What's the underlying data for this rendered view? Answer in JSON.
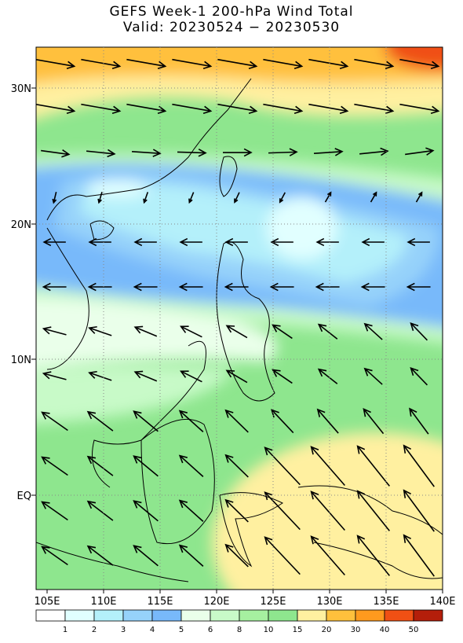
{
  "title": "GEFS Week-1 200-hPa Wind Total",
  "subtitle": "Valid: 20230524 − 20230530",
  "map": {
    "lat_labels": [
      "30N",
      "20N",
      "10N",
      "EQ"
    ],
    "lon_labels": [
      "105E",
      "110E",
      "115E",
      "120E",
      "125E",
      "130E",
      "135E",
      "140E"
    ]
  },
  "colorbar": {
    "levels": [
      1,
      2,
      3,
      4,
      5,
      6,
      8,
      10,
      15,
      20,
      30,
      40,
      50
    ],
    "colors": [
      "#ffffff",
      "#e1ffff",
      "#b4f0fa",
      "#96d2fa",
      "#78b9fa",
      "#eaffea",
      "#c8fac8",
      "#a6f0a0",
      "#8ee68e",
      "#fff0a0",
      "#ffc03c",
      "#ff9a1e",
      "#f05014",
      "#b41e0a"
    ]
  }
}
